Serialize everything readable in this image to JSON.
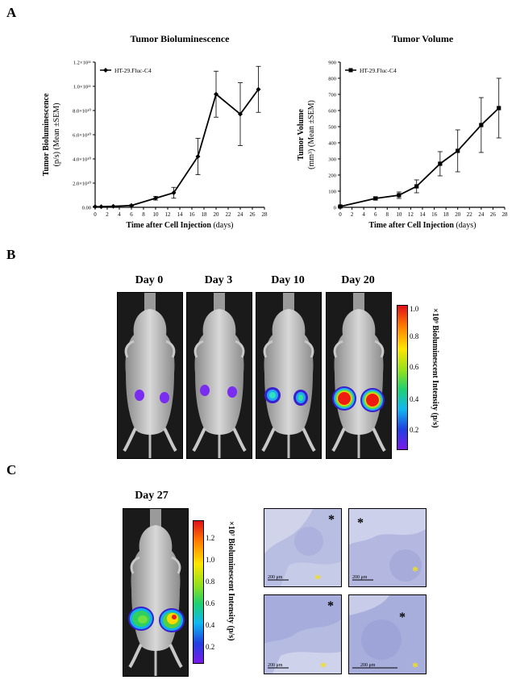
{
  "panels": {
    "a": "A",
    "b": "B",
    "c": "C"
  },
  "chart_data": [
    {
      "type": "line",
      "title": "Tumor Bioluminescence",
      "xlabel": "Time after Cell Injection (days)",
      "xlabel_bold": "Time after Cell Injection",
      "xlabel_unit": " (days)",
      "ylabel": "Tumor Bioluminescence",
      "ylabel2": "(p/s) (Mean ±SEM)",
      "series": [
        {
          "name": "HT-29.Fluc-C4",
          "marker": "diamond",
          "x": [
            0,
            1,
            3,
            6,
            10,
            13,
            17,
            20,
            24,
            27
          ],
          "y": [
            500000000.0,
            500000000.0,
            800000000.0,
            1500000000.0,
            7500000000.0,
            12000000000.0,
            42000000000.0,
            93500000000.0,
            77000000000.0,
            97500000000.0
          ],
          "err": [
            200000000.0,
            200000000.0,
            300000000.0,
            500000000.0,
            1500000000.0,
            4500000000.0,
            15000000000.0,
            19000000000.0,
            26000000000.0,
            19000000000.0
          ]
        }
      ],
      "xlim": [
        0,
        28
      ],
      "xticks": [
        0,
        2,
        4,
        6,
        8,
        10,
        12,
        14,
        16,
        18,
        20,
        22,
        24,
        26,
        28
      ],
      "ylim": [
        0,
        120000000000.0
      ],
      "yticks": [
        0,
        20000000000.0,
        40000000000.0,
        60000000000.0,
        80000000000.0,
        100000000000.0,
        120000000000.0
      ],
      "ytick_labels": [
        "0.00",
        "2.0×10¹⁰",
        "4.0×10¹⁰",
        "6.0×10¹⁰",
        "8.0×10¹⁰",
        "1.0×10¹¹",
        "1.2×10¹¹"
      ]
    },
    {
      "type": "line",
      "title": "Tumor Volume",
      "xlabel": "Time after Cell Injection (days)",
      "xlabel_bold": "Time after Cell Injection",
      "xlabel_unit": " (days)",
      "ylabel": "Tumor Volume",
      "ylabel2": "(mm³) (Mean ±SEM)",
      "series": [
        {
          "name": "HT-29.Fluc-C4",
          "marker": "square",
          "x": [
            0,
            6,
            10,
            13,
            17,
            20,
            24,
            27
          ],
          "y": [
            5,
            55,
            75,
            130,
            270,
            350,
            510,
            615
          ],
          "err": [
            3,
            10,
            20,
            40,
            75,
            130,
            170,
            185
          ]
        }
      ],
      "xlim": [
        0,
        28
      ],
      "xticks": [
        0,
        2,
        4,
        6,
        8,
        10,
        12,
        14,
        16,
        18,
        20,
        22,
        24,
        26,
        28
      ],
      "ylim": [
        0,
        900
      ],
      "yticks": [
        0,
        100,
        200,
        300,
        400,
        500,
        600,
        700,
        800,
        900
      ],
      "ytick_labels": [
        "0",
        "100",
        "200",
        "300",
        "400",
        "500",
        "600",
        "700",
        "800",
        "900"
      ]
    }
  ],
  "imaging_b": {
    "days": [
      "Day 0",
      "Day 3",
      "Day 10",
      "Day 20"
    ],
    "signal_level": [
      0.15,
      0.15,
      0.45,
      1.0
    ],
    "colorbar_ticks": [
      "1.0",
      "0.8",
      "0.6",
      "0.4",
      "0.2"
    ],
    "colorbar_label": "×10⁹ Bioluminescent Intensity (p/s)"
  },
  "imaging_c": {
    "day": "Day 27",
    "colorbar_ticks": [
      "1.2",
      "1.0",
      "0.8",
      "0.6",
      "0.4",
      "0.2"
    ],
    "colorbar_label": "×10⁷ Bioluminescent Intensity (p/s)",
    "scale_bar": "200 μm"
  }
}
